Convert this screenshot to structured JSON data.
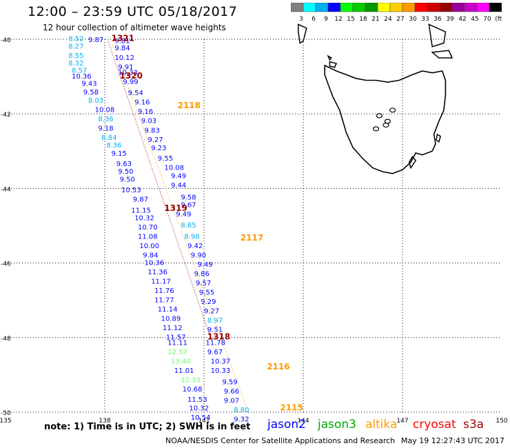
{
  "header": {
    "title": "12:00 – 23:59 UTC 05/18/2017",
    "subtitle": "12 hour collection of altimeter wave heights"
  },
  "legend": {
    "colors": [
      "#808080",
      "#00ffff",
      "#00b0f0",
      "#0000ff",
      "#00ff00",
      "#00cc00",
      "#009900",
      "#ffff00",
      "#ffcc00",
      "#ff9900",
      "#ff0000",
      "#cc0000",
      "#990000",
      "#990099",
      "#cc00cc",
      "#ff00ff",
      "#000000"
    ],
    "labels": [
      "3",
      "6",
      "9",
      "12",
      "15",
      "18",
      "21",
      "24",
      "27",
      "30",
      "33",
      "36",
      "39",
      "42",
      "45",
      "70",
      "(ft)"
    ]
  },
  "map": {
    "lat_ticks": [
      "-40",
      "-42",
      "-44",
      "-46",
      "-48",
      "-50"
    ],
    "lon_ticks": [
      "135",
      "138",
      "141",
      "144",
      "147",
      "150"
    ],
    "lon_range": [
      135,
      150
    ],
    "lat_range": [
      -50,
      -40
    ],
    "land_name": "Tasmania"
  },
  "time_labels": [
    {
      "text": "1321",
      "color": "#990000",
      "lon": 138.2,
      "lat": -40.05
    },
    {
      "text": "1320",
      "color": "#990000",
      "lon": 138.45,
      "lat": -41.05
    },
    {
      "text": "2118",
      "color": "#ff9900",
      "lon": 140.2,
      "lat": -41.85
    },
    {
      "text": "1319",
      "color": "#990000",
      "lon": 139.8,
      "lat": -44.6
    },
    {
      "text": "2117",
      "color": "#ff9900",
      "lon": 142.1,
      "lat": -45.4
    },
    {
      "text": "1318",
      "color": "#990000",
      "lon": 141.1,
      "lat": -48.05
    },
    {
      "text": "2116",
      "color": "#ff9900",
      "lon": 142.9,
      "lat": -48.85
    },
    {
      "text": "2115",
      "color": "#ff9900",
      "lon": 143.3,
      "lat": -49.95
    }
  ],
  "tracks": [
    {
      "name": "cryosat",
      "color": "#990000",
      "start": [
        138.1,
        -40.05
      ],
      "end": [
        141.2,
        -48.0
      ]
    },
    {
      "name": "altika",
      "color": "#ff9900",
      "start": [
        138.2,
        -40.05
      ],
      "end": [
        142.3,
        -49.9
      ]
    }
  ],
  "observations": [
    {
      "lon": 136.9,
      "lat": -40.05,
      "value": "8.52",
      "color": "#00b0f0"
    },
    {
      "lon": 137.5,
      "lat": -40.07,
      "value": "9.87",
      "color": "#0000ff"
    },
    {
      "lon": 138.3,
      "lat": -40.1,
      "value": "9.81",
      "color": "#0000ff"
    },
    {
      "lon": 136.9,
      "lat": -40.25,
      "value": "8.27",
      "color": "#00b0f0"
    },
    {
      "lon": 138.3,
      "lat": -40.3,
      "value": "9.84",
      "color": "#0000ff"
    },
    {
      "lon": 136.9,
      "lat": -40.5,
      "value": "8.55",
      "color": "#00b0f0"
    },
    {
      "lon": 138.3,
      "lat": -40.55,
      "value": "10.12",
      "color": "#0000ff"
    },
    {
      "lon": 136.9,
      "lat": -40.7,
      "value": "8.32",
      "color": "#00b0f0"
    },
    {
      "lon": 138.4,
      "lat": -40.8,
      "value": "9.91",
      "color": "#0000ff"
    },
    {
      "lon": 137.0,
      "lat": -40.9,
      "value": "8.57",
      "color": "#00b0f0"
    },
    {
      "lon": 138.4,
      "lat": -40.95,
      "value": "10.33",
      "color": "#0000ff"
    },
    {
      "lon": 137.0,
      "lat": -41.05,
      "value": "10.36",
      "color": "#0000ff"
    },
    {
      "lon": 138.55,
      "lat": -41.2,
      "value": "9.99",
      "color": "#0000ff"
    },
    {
      "lon": 137.3,
      "lat": -41.25,
      "value": "9.43",
      "color": "#0000ff"
    },
    {
      "lon": 137.35,
      "lat": -41.48,
      "value": "9.58",
      "color": "#0000ff"
    },
    {
      "lon": 138.7,
      "lat": -41.5,
      "value": "9.54",
      "color": "#0000ff"
    },
    {
      "lon": 137.5,
      "lat": -41.7,
      "value": "8.03",
      "color": "#00b0f0"
    },
    {
      "lon": 138.9,
      "lat": -41.75,
      "value": "9.16",
      "color": "#0000ff"
    },
    {
      "lon": 137.7,
      "lat": -41.95,
      "value": "10.08",
      "color": "#0000ff"
    },
    {
      "lon": 139.0,
      "lat": -42.0,
      "value": "9.16",
      "color": "#0000ff"
    },
    {
      "lon": 137.8,
      "lat": -42.2,
      "value": "8.36",
      "color": "#00b0f0"
    },
    {
      "lon": 139.1,
      "lat": -42.25,
      "value": "9.03",
      "color": "#0000ff"
    },
    {
      "lon": 137.8,
      "lat": -42.45,
      "value": "9.18",
      "color": "#0000ff"
    },
    {
      "lon": 139.2,
      "lat": -42.5,
      "value": "9.83",
      "color": "#0000ff"
    },
    {
      "lon": 137.9,
      "lat": -42.7,
      "value": "8.84",
      "color": "#00b0f0"
    },
    {
      "lon": 139.3,
      "lat": -42.75,
      "value": "9.27",
      "color": "#0000ff"
    },
    {
      "lon": 138.05,
      "lat": -42.9,
      "value": "8.36",
      "color": "#00b0f0"
    },
    {
      "lon": 139.4,
      "lat": -42.98,
      "value": "9.23",
      "color": "#0000ff"
    },
    {
      "lon": 138.2,
      "lat": -43.12,
      "value": "9.15",
      "color": "#0000ff"
    },
    {
      "lon": 139.6,
      "lat": -43.25,
      "value": "9.55",
      "color": "#0000ff"
    },
    {
      "lon": 138.35,
      "lat": -43.4,
      "value": "9.63",
      "color": "#0000ff"
    },
    {
      "lon": 139.8,
      "lat": -43.5,
      "value": "10.08",
      "color": "#0000ff"
    },
    {
      "lon": 138.4,
      "lat": -43.6,
      "value": "9.50",
      "color": "#0000ff"
    },
    {
      "lon": 140.0,
      "lat": -43.72,
      "value": "9.49",
      "color": "#0000ff"
    },
    {
      "lon": 138.45,
      "lat": -43.82,
      "value": "9.50",
      "color": "#0000ff"
    },
    {
      "lon": 140.0,
      "lat": -43.97,
      "value": "9.44",
      "color": "#0000ff"
    },
    {
      "lon": 138.5,
      "lat": -44.1,
      "value": "10.53",
      "color": "#0000ff"
    },
    {
      "lon": 140.3,
      "lat": -44.3,
      "value": "9.58",
      "color": "#0000ff"
    },
    {
      "lon": 138.85,
      "lat": -44.35,
      "value": "9.87",
      "color": "#0000ff"
    },
    {
      "lon": 140.3,
      "lat": -44.5,
      "value": "9.67",
      "color": "#0000ff"
    },
    {
      "lon": 138.8,
      "lat": -44.65,
      "value": "11.15",
      "color": "#0000ff"
    },
    {
      "lon": 140.15,
      "lat": -44.75,
      "value": "9.49",
      "color": "#0000ff"
    },
    {
      "lon": 138.9,
      "lat": -44.85,
      "value": "10.32",
      "color": "#0000ff"
    },
    {
      "lon": 140.3,
      "lat": -45.05,
      "value": "8.85",
      "color": "#00b0f0"
    },
    {
      "lon": 139.0,
      "lat": -45.1,
      "value": "10.70",
      "color": "#0000ff"
    },
    {
      "lon": 140.4,
      "lat": -45.35,
      "value": "8.98",
      "color": "#00b0f0"
    },
    {
      "lon": 139.0,
      "lat": -45.35,
      "value": "11.08",
      "color": "#0000ff"
    },
    {
      "lon": 140.5,
      "lat": -45.6,
      "value": "9.42",
      "color": "#0000ff"
    },
    {
      "lon": 139.05,
      "lat": -45.6,
      "value": "10.00",
      "color": "#0000ff"
    },
    {
      "lon": 140.6,
      "lat": -45.85,
      "value": "9.90",
      "color": "#0000ff"
    },
    {
      "lon": 139.15,
      "lat": -45.85,
      "value": "9.84",
      "color": "#0000ff"
    },
    {
      "lon": 140.8,
      "lat": -46.1,
      "value": "9.49",
      "color": "#0000ff"
    },
    {
      "lon": 139.2,
      "lat": -46.05,
      "value": "10.36",
      "color": "#0000ff"
    },
    {
      "lon": 139.3,
      "lat": -46.3,
      "value": "11.36",
      "color": "#0000ff"
    },
    {
      "lon": 140.7,
      "lat": -46.35,
      "value": "9.86",
      "color": "#0000ff"
    },
    {
      "lon": 139.4,
      "lat": -46.55,
      "value": "11.17",
      "color": "#0000ff"
    },
    {
      "lon": 140.75,
      "lat": -46.6,
      "value": "9.57",
      "color": "#0000ff"
    },
    {
      "lon": 139.5,
      "lat": -46.8,
      "value": "11.76",
      "color": "#0000ff"
    },
    {
      "lon": 140.85,
      "lat": -46.85,
      "value": "9.55",
      "color": "#0000ff"
    },
    {
      "lon": 139.5,
      "lat": -47.05,
      "value": "11.77",
      "color": "#0000ff"
    },
    {
      "lon": 140.9,
      "lat": -47.1,
      "value": "9.29",
      "color": "#0000ff"
    },
    {
      "lon": 139.6,
      "lat": -47.3,
      "value": "11.14",
      "color": "#0000ff"
    },
    {
      "lon": 141.0,
      "lat": -47.35,
      "value": "9.27",
      "color": "#0000ff"
    },
    {
      "lon": 139.7,
      "lat": -47.55,
      "value": "10.89",
      "color": "#0000ff"
    },
    {
      "lon": 141.1,
      "lat": -47.6,
      "value": "8.97",
      "color": "#00b0f0"
    },
    {
      "lon": 139.75,
      "lat": -47.8,
      "value": "11.12",
      "color": "#0000ff"
    },
    {
      "lon": 141.1,
      "lat": -47.85,
      "value": "9.51",
      "color": "#0000ff"
    },
    {
      "lon": 139.85,
      "lat": -48.05,
      "value": "11.57",
      "color": "#0000ff"
    },
    {
      "lon": 139.9,
      "lat": -48.2,
      "value": "11.11",
      "color": "#0000ff"
    },
    {
      "lon": 141.05,
      "lat": -48.2,
      "value": "11.78",
      "color": "#0000ff"
    },
    {
      "lon": 139.9,
      "lat": -48.45,
      "value": "12.57",
      "color": "#66ff66"
    },
    {
      "lon": 141.1,
      "lat": -48.45,
      "value": "9.67",
      "color": "#0000ff"
    },
    {
      "lon": 140.0,
      "lat": -48.7,
      "value": "13.40",
      "color": "#66ff66"
    },
    {
      "lon": 141.2,
      "lat": -48.7,
      "value": "10.37",
      "color": "#0000ff"
    },
    {
      "lon": 140.1,
      "lat": -48.95,
      "value": "11.01",
      "color": "#0000ff"
    },
    {
      "lon": 141.2,
      "lat": -48.95,
      "value": "10.33",
      "color": "#0000ff"
    },
    {
      "lon": 140.3,
      "lat": -49.2,
      "value": "12.33",
      "color": "#66ff66"
    },
    {
      "lon": 141.55,
      "lat": -49.25,
      "value": "9.59",
      "color": "#0000ff"
    },
    {
      "lon": 140.35,
      "lat": -49.45,
      "value": "10.68",
      "color": "#0000ff"
    },
    {
      "lon": 141.6,
      "lat": -49.5,
      "value": "9.66",
      "color": "#0000ff"
    },
    {
      "lon": 140.5,
      "lat": -49.72,
      "value": "11.53",
      "color": "#0000ff"
    },
    {
      "lon": 141.6,
      "lat": -49.75,
      "value": "9.07",
      "color": "#0000ff"
    },
    {
      "lon": 140.55,
      "lat": -49.95,
      "value": "10.32",
      "color": "#0000ff"
    },
    {
      "lon": 141.9,
      "lat": -50.0,
      "value": "8.80",
      "color": "#00b0f0"
    },
    {
      "lon": 140.6,
      "lat": -50.2,
      "value": "10.54",
      "color": "#0000ff"
    },
    {
      "lon": 141.9,
      "lat": -50.25,
      "value": "9.32",
      "color": "#0000ff"
    }
  ],
  "footer": {
    "note": "note: 1) Time is in UTC; 2) SWH is in feet",
    "satellites": [
      {
        "name": "jason2",
        "color": "#0000ff"
      },
      {
        "name": "jason3",
        "color": "#00aa00"
      },
      {
        "name": "altika",
        "color": "#ff9900"
      },
      {
        "name": "cryosat",
        "color": "#ff0000"
      },
      {
        "name": "s3a",
        "color": "#990000"
      }
    ],
    "credit": "NOAA/NESDIS Center for Satellite Applications and Research",
    "timestamp": "May 19 12:27:43 UTC 2017"
  }
}
